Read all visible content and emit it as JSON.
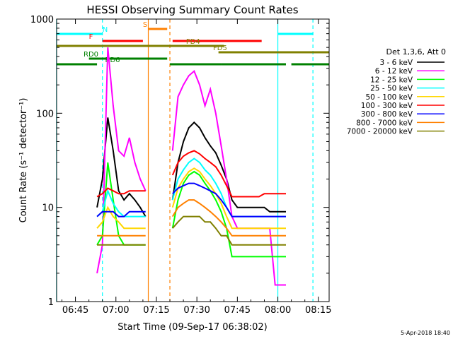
{
  "chart_data": {
    "type": "line",
    "title": "HESSI Observing Summary Count Rates",
    "xlabel": "Start Time (09-Sep-17 06:38:02)",
    "ylabel": "Count Rate (s⁻¹ detector⁻¹)",
    "scale_y": "log",
    "xlim": [
      "06:38:02",
      "08:19:00"
    ],
    "ylim": [
      1,
      1000
    ],
    "x_ticks": [
      "06:45",
      "07:00",
      "07:15",
      "07:30",
      "07:45",
      "08:00",
      "08:15"
    ],
    "y_ticks": [
      "1",
      "10",
      "100",
      "1000"
    ],
    "footer": "5-Apr-2018 18:40",
    "legend": {
      "placement": "right",
      "title": "Det 1,3,6, Att 0",
      "entries": [
        {
          "label": "3 - 6 keV",
          "color": "#000000"
        },
        {
          "label": "6 - 12 keV",
          "color": "#ff00ff"
        },
        {
          "label": "12 - 25 keV",
          "color": "#00ff00"
        },
        {
          "label": "25 - 50 keV",
          "color": "#00ffff"
        },
        {
          "label": "50 - 100 keV",
          "color": "#ffd700"
        },
        {
          "label": "100 - 300 keV",
          "color": "#ff0000"
        },
        {
          "label": "300 - 800 keV",
          "color": "#0000ff"
        },
        {
          "label": "800 - 7000 keV",
          "color": "#ff8000"
        },
        {
          "label": "7000 - 20000 keV",
          "color": "#808000"
        }
      ]
    },
    "flag_bars": [
      {
        "label": "N",
        "color": "#00ffff",
        "segments": [
          [
            "06:38",
            "06:55"
          ],
          [
            "08:00",
            "08:13"
          ]
        ]
      },
      {
        "label": "S",
        "color": "#ff8000",
        "segments": [
          [
            "07:12",
            "07:19"
          ]
        ]
      },
      {
        "label": "F",
        "color": "#ff0000",
        "segments": [
          [
            "06:55",
            "07:10"
          ],
          [
            "07:21",
            "07:54"
          ]
        ]
      },
      {
        "label": "FD4",
        "color": "#808000",
        "segments": [
          [
            "06:38",
            "07:40"
          ]
        ]
      },
      {
        "label": "FD5",
        "color": "#808000",
        "segments": [
          [
            "07:38",
            "08:19"
          ]
        ]
      },
      {
        "label": "RD0",
        "color": "#008000",
        "segments": [
          [
            "06:50",
            "07:19"
          ]
        ]
      },
      {
        "label": "RD6",
        "color": "#008000",
        "segments": [
          [
            "06:38",
            "06:53"
          ],
          [
            "07:20",
            "07:39"
          ],
          [
            "07:39",
            "08:03"
          ],
          [
            "08:05",
            "08:19"
          ]
        ]
      }
    ],
    "vertical_lines": [
      {
        "x": "06:38",
        "color": "#00ffff",
        "style": "solid"
      },
      {
        "x": "06:55",
        "color": "#00ffff",
        "style": "dashed"
      },
      {
        "x": "07:12",
        "color": "#ff8000",
        "style": "solid"
      },
      {
        "x": "07:20",
        "color": "#ff8000",
        "style": "dashed"
      },
      {
        "x": "08:00",
        "color": "#00ffff",
        "style": "solid"
      },
      {
        "x": "08:13",
        "color": "#00ffff",
        "style": "dashed"
      }
    ],
    "x": [
      "06:53",
      "06:55",
      "06:57",
      "06:59",
      "07:01",
      "07:03",
      "07:05",
      "07:07",
      "07:09",
      "07:11",
      "07:21",
      "07:23",
      "07:25",
      "07:27",
      "07:29",
      "07:31",
      "07:33",
      "07:35",
      "07:37",
      "07:39",
      "07:41",
      "07:43",
      "07:45",
      "07:47",
      "07:49",
      "07:51",
      "07:53",
      "07:55",
      "07:57",
      "07:59",
      "08:01",
      "08:03"
    ],
    "series": [
      {
        "name": "3 - 6 keV",
        "color": "#000000",
        "values": [
          10,
          20,
          90,
          40,
          15,
          12,
          14,
          12,
          10,
          8,
          12,
          30,
          50,
          70,
          80,
          70,
          55,
          45,
          38,
          28,
          20,
          12,
          10,
          10,
          10,
          10,
          10,
          10,
          9,
          9,
          9,
          9
        ]
      },
      {
        "name": "6 - 12 keV",
        "color": "#ff00ff",
        "values": [
          2,
          4,
          500,
          120,
          40,
          35,
          55,
          30,
          20,
          15,
          40,
          150,
          200,
          250,
          280,
          200,
          120,
          180,
          100,
          45,
          20,
          8,
          6,
          6,
          6,
          6,
          6,
          6,
          6,
          1.5,
          1.5,
          1.5
        ]
      },
      {
        "name": "12 - 25 keV",
        "color": "#00ff00",
        "values": [
          4,
          5,
          30,
          12,
          5,
          4,
          4,
          4,
          4,
          4,
          6,
          12,
          18,
          22,
          24,
          22,
          18,
          15,
          12,
          9,
          6,
          3,
          3,
          3,
          3,
          3,
          3,
          3,
          3,
          3,
          3,
          3
        ]
      },
      {
        "name": "25 - 50 keV",
        "color": "#00ffff",
        "values": [
          8,
          9,
          15,
          11,
          9,
          8,
          8,
          8,
          8,
          8,
          12,
          20,
          25,
          30,
          33,
          30,
          25,
          22,
          18,
          14,
          10,
          8,
          8,
          8,
          8,
          8,
          8,
          8,
          8,
          8,
          8,
          8
        ]
      },
      {
        "name": "50 - 100 keV",
        "color": "#ffd700",
        "values": [
          6,
          7,
          10,
          8,
          7,
          6,
          6,
          6,
          6,
          6,
          10,
          16,
          20,
          24,
          26,
          24,
          20,
          17,
          14,
          11,
          8,
          6,
          6,
          6,
          6,
          6,
          6,
          6,
          6,
          6,
          6,
          6
        ]
      },
      {
        "name": "100 - 300 keV",
        "color": "#ff0000",
        "values": [
          13,
          14,
          16,
          15,
          14,
          14,
          15,
          15,
          15,
          15,
          22,
          30,
          35,
          38,
          40,
          37,
          33,
          30,
          27,
          22,
          17,
          13,
          13,
          13,
          13,
          13,
          13,
          14,
          14,
          14,
          14,
          14
        ]
      },
      {
        "name": "300 - 800 keV",
        "color": "#0000ff",
        "values": [
          8,
          9,
          9,
          9,
          8,
          8,
          9,
          9,
          9,
          9,
          14,
          16,
          17,
          18,
          18,
          17,
          16,
          15,
          14,
          12,
          10,
          8,
          8,
          8,
          8,
          8,
          8,
          8,
          8,
          8,
          8,
          8
        ]
      },
      {
        "name": "800 - 7000 keV",
        "color": "#ff8000",
        "values": [
          5,
          5,
          5,
          5,
          5,
          5,
          5,
          5,
          5,
          5,
          8,
          10,
          11,
          12,
          12,
          11,
          10,
          9,
          8,
          7,
          6,
          5,
          5,
          5,
          5,
          5,
          5,
          5,
          5,
          5,
          5,
          5
        ]
      },
      {
        "name": "7000 - 20000 keV",
        "color": "#808000",
        "values": [
          4,
          4,
          4,
          4,
          4,
          4,
          4,
          4,
          4,
          4,
          6,
          7,
          8,
          8,
          8,
          8,
          7,
          7,
          6,
          5,
          5,
          4,
          4,
          4,
          4,
          4,
          4,
          4,
          4,
          4,
          4,
          4
        ]
      }
    ]
  }
}
